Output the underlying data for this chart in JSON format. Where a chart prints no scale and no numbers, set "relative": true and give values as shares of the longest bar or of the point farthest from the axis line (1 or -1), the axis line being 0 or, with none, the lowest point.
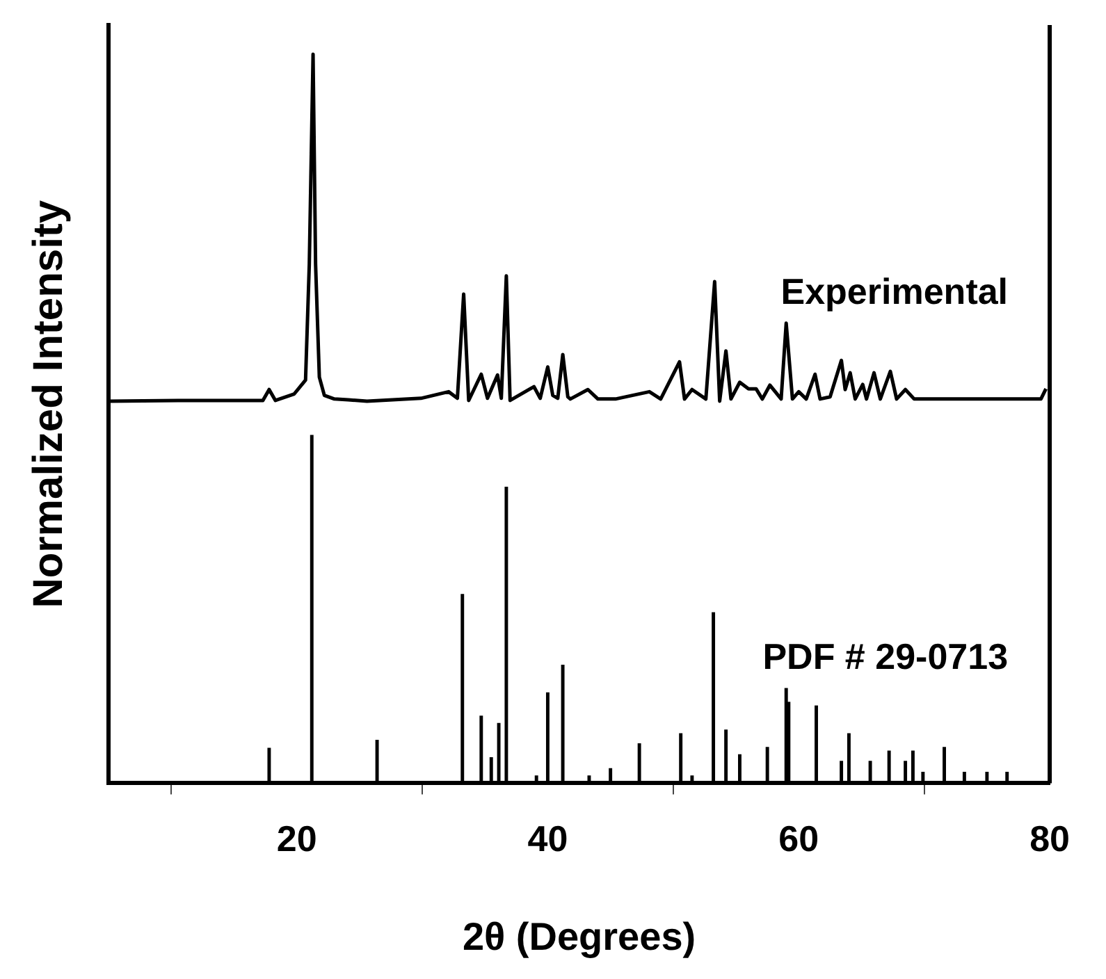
{
  "chart_data": {
    "type": "line",
    "relative": true,
    "xlabel": "2θ (Degrees)",
    "ylabel": "Normalized Intensity",
    "xlim": [
      5,
      80
    ],
    "xticks": [
      20,
      40,
      60,
      80
    ],
    "grid": false,
    "legend": false,
    "marker": "none",
    "line_style": "solid",
    "tick_labels": "x",
    "series": [
      {
        "name": "Experimental",
        "color": "#000000",
        "x": [
          5,
          11.1,
          16.9,
          17.3,
          17.8,
          18.3,
          19.8,
          20.7,
          21.0,
          21.3,
          21.5,
          21.8,
          22.2,
          23.0,
          24.1,
          25.6,
          29.9,
          32.1,
          32.8,
          33.3,
          33.7,
          34.7,
          35.2,
          36.0,
          36.3,
          36.7,
          37.0,
          38.9,
          39.4,
          40.0,
          40.4,
          40.8,
          41.2,
          41.6,
          41.8,
          43.2,
          44.0,
          45.4,
          48.1,
          49.0,
          50.5,
          50.9,
          51.5,
          52.6,
          53.3,
          53.7,
          54.2,
          54.6,
          55.3,
          56.0,
          56.6,
          57.1,
          57.7,
          58.6,
          59.0,
          59.5,
          60.0,
          60.6,
          61.3,
          61.7,
          62.5,
          63.4,
          63.7,
          64.1,
          64.5,
          65.1,
          65.4,
          66.0,
          66.5,
          67.3,
          67.8,
          68.5,
          69.2,
          79.3,
          79.7
        ],
        "values": [
          0.524,
          0.525,
          0.525,
          0.525,
          0.54,
          0.525,
          0.534,
          0.553,
          0.712,
          1.0,
          0.712,
          0.557,
          0.532,
          0.527,
          0.526,
          0.524,
          0.528,
          0.537,
          0.528,
          0.671,
          0.525,
          0.561,
          0.528,
          0.56,
          0.528,
          0.696,
          0.525,
          0.544,
          0.528,
          0.571,
          0.532,
          0.528,
          0.588,
          0.53,
          0.527,
          0.54,
          0.527,
          0.527,
          0.537,
          0.527,
          0.578,
          0.527,
          0.54,
          0.527,
          0.688,
          0.524,
          0.593,
          0.527,
          0.55,
          0.541,
          0.541,
          0.527,
          0.546,
          0.527,
          0.631,
          0.527,
          0.537,
          0.527,
          0.561,
          0.527,
          0.53,
          0.58,
          0.54,
          0.563,
          0.527,
          0.547,
          0.527,
          0.563,
          0.527,
          0.565,
          0.527,
          0.54,
          0.527,
          0.527,
          0.541
        ]
      },
      {
        "name": "PDF # 29-0713",
        "type": "bar",
        "color": "#000000",
        "x": [
          17.8,
          21.2,
          26.4,
          33.2,
          34.7,
          35.5,
          36.1,
          36.7,
          39.1,
          40.0,
          41.2,
          43.3,
          45.0,
          47.3,
          50.6,
          51.5,
          53.2,
          54.2,
          55.3,
          57.5,
          59.0,
          59.2,
          61.4,
          63.4,
          64.0,
          65.7,
          67.2,
          68.5,
          69.1,
          69.9,
          71.6,
          73.2,
          75.0,
          76.6
        ],
        "values": [
          0.048,
          0.477,
          0.059,
          0.259,
          0.092,
          0.035,
          0.082,
          0.406,
          0.01,
          0.124,
          0.162,
          0.01,
          0.02,
          0.054,
          0.068,
          0.01,
          0.234,
          0.073,
          0.039,
          0.049,
          0.13,
          0.111,
          0.106,
          0.03,
          0.068,
          0.03,
          0.044,
          0.03,
          0.044,
          0.015,
          0.049,
          0.015,
          0.015,
          0.015
        ]
      }
    ]
  }
}
